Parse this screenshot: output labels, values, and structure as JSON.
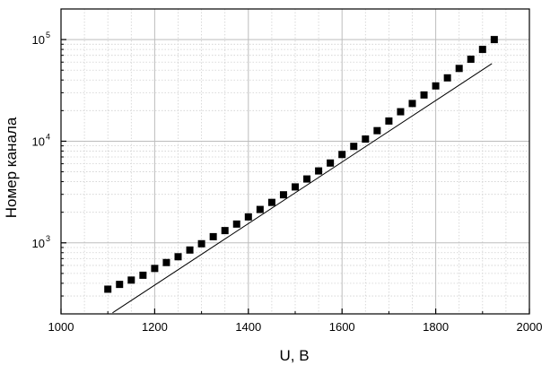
{
  "chart_data": {
    "type": "scatter",
    "xlabel": "U, B",
    "ylabel": "Номер канала",
    "xlim": [
      1000,
      2000
    ],
    "ylim": [
      200,
      200000
    ],
    "y_scale": "log",
    "grid": true,
    "x_ticks": [
      {
        "value": 1000,
        "label": "1000"
      },
      {
        "value": 1200,
        "label": "1200"
      },
      {
        "value": 1400,
        "label": "1400"
      },
      {
        "value": 1600,
        "label": "1600"
      },
      {
        "value": 1800,
        "label": "1800"
      },
      {
        "value": 2000,
        "label": "2000"
      }
    ],
    "y_ticks": [
      {
        "value": 1000,
        "base": "10",
        "exp": "3"
      },
      {
        "value": 10000,
        "base": "10",
        "exp": "4"
      },
      {
        "value": 100000,
        "base": "10",
        "exp": "5"
      }
    ],
    "series": [
      {
        "type": "scatter",
        "color": "#000000",
        "x": [
          1100,
          1125,
          1150,
          1175,
          1200,
          1225,
          1250,
          1275,
          1300,
          1325,
          1350,
          1375,
          1400,
          1425,
          1450,
          1475,
          1500,
          1525,
          1550,
          1575,
          1600,
          1625,
          1650,
          1675,
          1700,
          1725,
          1750,
          1775,
          1800,
          1825,
          1850,
          1875,
          1900,
          1925
        ],
        "y": [
          350,
          390,
          430,
          480,
          560,
          640,
          730,
          850,
          980,
          1150,
          1320,
          1530,
          1800,
          2130,
          2500,
          2970,
          3550,
          4250,
          5100,
          6100,
          7400,
          8900,
          10500,
          12700,
          15800,
          19500,
          23500,
          28500,
          35000,
          42000,
          52000,
          64000,
          80000,
          100000
        ]
      },
      {
        "type": "line",
        "color": "#000000",
        "x": [
          1110,
          1920
        ],
        "y": [
          205,
          58000
        ]
      }
    ]
  }
}
